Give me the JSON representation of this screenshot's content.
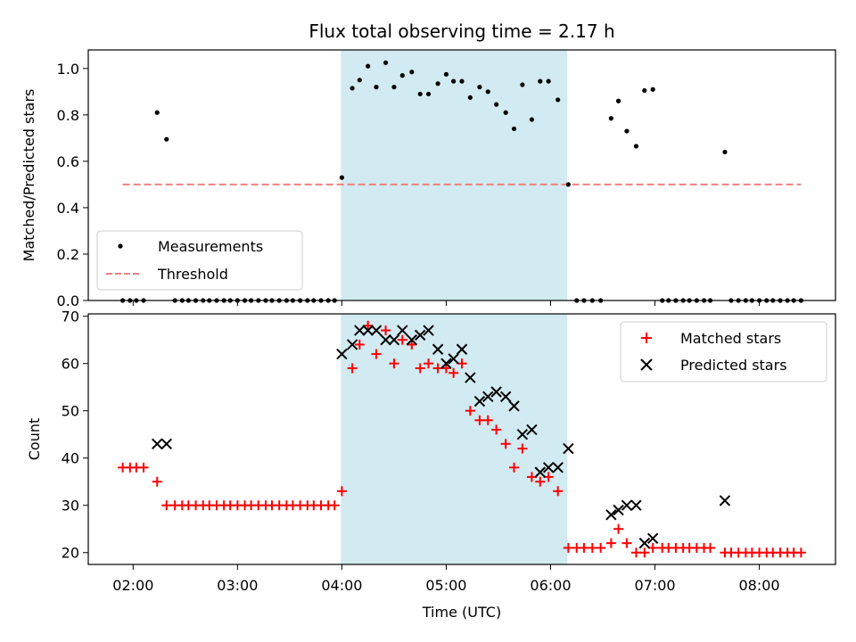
{
  "chart_data": {
    "title": "Flux total observing time = 2.17 h",
    "shared_x": {
      "label": "Time (UTC)",
      "tick_labels": [
        "02:00",
        "03:00",
        "04:00",
        "05:00",
        "06:00",
        "07:00",
        "08:00"
      ],
      "tick_hours": [
        2,
        3,
        4,
        5,
        6,
        7,
        8
      ],
      "range_hours": [
        1.57,
        8.73
      ]
    },
    "highlight_span_hours": [
      3.99,
      6.16
    ],
    "highlight_color": "#add8e6",
    "top": {
      "type": "scatter",
      "ylabel": "Matched/Predicted stars",
      "ylim": [
        0,
        1.08
      ],
      "y_ticks": [
        0.0,
        0.2,
        0.4,
        0.6,
        0.8,
        1.0
      ],
      "y_tick_labels": [
        "0.0",
        "0.2",
        "0.4",
        "0.6",
        "0.8",
        "1.0"
      ],
      "legend_position": "lower-left",
      "series": [
        {
          "name": "Measurements",
          "color": "#000000",
          "marker": "dot",
          "points": [
            [
              1.9,
              0
            ],
            [
              1.97,
              0
            ],
            [
              2.03,
              0
            ],
            [
              2.1,
              0
            ],
            [
              2.23,
              0.81
            ],
            [
              2.32,
              0.695
            ],
            [
              2.4,
              0
            ],
            [
              2.47,
              0
            ],
            [
              2.53,
              0
            ],
            [
              2.6,
              0
            ],
            [
              2.67,
              0
            ],
            [
              2.73,
              0
            ],
            [
              2.8,
              0
            ],
            [
              2.87,
              0
            ],
            [
              2.93,
              0
            ],
            [
              3.0,
              0
            ],
            [
              3.07,
              0
            ],
            [
              3.13,
              0
            ],
            [
              3.2,
              0
            ],
            [
              3.27,
              0
            ],
            [
              3.33,
              0
            ],
            [
              3.4,
              0
            ],
            [
              3.47,
              0
            ],
            [
              3.53,
              0
            ],
            [
              3.6,
              0
            ],
            [
              3.67,
              0
            ],
            [
              3.73,
              0
            ],
            [
              3.8,
              0
            ],
            [
              3.87,
              0
            ],
            [
              3.93,
              0
            ],
            [
              4.0,
              0.53
            ],
            [
              4.1,
              0.915
            ],
            [
              4.17,
              0.95
            ],
            [
              4.25,
              1.01
            ],
            [
              4.33,
              0.92
            ],
            [
              4.42,
              1.025
            ],
            [
              4.5,
              0.92
            ],
            [
              4.58,
              0.97
            ],
            [
              4.67,
              0.985
            ],
            [
              4.75,
              0.89
            ],
            [
              4.83,
              0.89
            ],
            [
              4.92,
              0.935
            ],
            [
              5.0,
              0.975
            ],
            [
              5.07,
              0.945
            ],
            [
              5.15,
              0.945
            ],
            [
              5.23,
              0.875
            ],
            [
              5.32,
              0.92
            ],
            [
              5.4,
              0.9
            ],
            [
              5.48,
              0.845
            ],
            [
              5.57,
              0.81
            ],
            [
              5.65,
              0.74
            ],
            [
              5.73,
              0.93
            ],
            [
              5.82,
              0.78
            ],
            [
              5.9,
              0.945
            ],
            [
              5.98,
              0.945
            ],
            [
              6.07,
              0.865
            ],
            [
              6.17,
              0.5
            ],
            [
              6.25,
              0
            ],
            [
              6.32,
              0
            ],
            [
              6.4,
              0
            ],
            [
              6.48,
              0
            ],
            [
              6.58,
              0.785
            ],
            [
              6.65,
              0.86
            ],
            [
              6.73,
              0.73
            ],
            [
              6.82,
              0.665
            ],
            [
              6.9,
              0.905
            ],
            [
              6.98,
              0.91
            ],
            [
              7.07,
              0
            ],
            [
              7.13,
              0
            ],
            [
              7.2,
              0
            ],
            [
              7.27,
              0
            ],
            [
              7.33,
              0
            ],
            [
              7.4,
              0
            ],
            [
              7.47,
              0
            ],
            [
              7.53,
              0
            ],
            [
              7.67,
              0.64
            ],
            [
              7.73,
              0
            ],
            [
              7.8,
              0
            ],
            [
              7.87,
              0
            ],
            [
              7.93,
              0
            ],
            [
              8.0,
              0
            ],
            [
              8.07,
              0
            ],
            [
              8.13,
              0
            ],
            [
              8.2,
              0
            ],
            [
              8.27,
              0
            ],
            [
              8.33,
              0
            ],
            [
              8.4,
              0
            ]
          ]
        },
        {
          "name": "Threshold",
          "color": "#f08080",
          "style": "dashed",
          "x_range": [
            1.9,
            8.4
          ],
          "value": 0.5
        }
      ]
    },
    "bottom": {
      "type": "scatter",
      "ylabel": "Count",
      "ylim": [
        17.5,
        70.5
      ],
      "y_ticks": [
        20,
        30,
        40,
        50,
        60,
        70
      ],
      "y_tick_labels": [
        "20",
        "30",
        "40",
        "50",
        "60",
        "70"
      ],
      "legend_position": "upper-right",
      "series": [
        {
          "name": "Matched stars",
          "color": "#ff0000",
          "marker": "plus",
          "points": [
            [
              1.9,
              38
            ],
            [
              1.97,
              38
            ],
            [
              2.03,
              38
            ],
            [
              2.1,
              38
            ],
            [
              2.23,
              35
            ],
            [
              2.32,
              30
            ],
            [
              2.4,
              30
            ],
            [
              2.47,
              30
            ],
            [
              2.53,
              30
            ],
            [
              2.6,
              30
            ],
            [
              2.67,
              30
            ],
            [
              2.73,
              30
            ],
            [
              2.8,
              30
            ],
            [
              2.87,
              30
            ],
            [
              2.93,
              30
            ],
            [
              3.0,
              30
            ],
            [
              3.07,
              30
            ],
            [
              3.13,
              30
            ],
            [
              3.2,
              30
            ],
            [
              3.27,
              30
            ],
            [
              3.33,
              30
            ],
            [
              3.4,
              30
            ],
            [
              3.47,
              30
            ],
            [
              3.53,
              30
            ],
            [
              3.6,
              30
            ],
            [
              3.67,
              30
            ],
            [
              3.73,
              30
            ],
            [
              3.8,
              30
            ],
            [
              3.87,
              30
            ],
            [
              3.93,
              30
            ],
            [
              4.0,
              33
            ],
            [
              4.1,
              59
            ],
            [
              4.17,
              64
            ],
            [
              4.25,
              68
            ],
            [
              4.33,
              62
            ],
            [
              4.42,
              67
            ],
            [
              4.5,
              60
            ],
            [
              4.58,
              65
            ],
            [
              4.67,
              64
            ],
            [
              4.75,
              59
            ],
            [
              4.83,
              60
            ],
            [
              4.92,
              59
            ],
            [
              5.0,
              59
            ],
            [
              5.07,
              58
            ],
            [
              5.15,
              60
            ],
            [
              5.23,
              50
            ],
            [
              5.32,
              48
            ],
            [
              5.4,
              48
            ],
            [
              5.48,
              46
            ],
            [
              5.57,
              43
            ],
            [
              5.65,
              38
            ],
            [
              5.73,
              42
            ],
            [
              5.82,
              36
            ],
            [
              5.9,
              35
            ],
            [
              5.98,
              36
            ],
            [
              6.07,
              33
            ],
            [
              6.17,
              21
            ],
            [
              6.25,
              21
            ],
            [
              6.32,
              21
            ],
            [
              6.4,
              21
            ],
            [
              6.48,
              21
            ],
            [
              6.58,
              22
            ],
            [
              6.65,
              25
            ],
            [
              6.73,
              22
            ],
            [
              6.82,
              20
            ],
            [
              6.9,
              20
            ],
            [
              6.98,
              21
            ],
            [
              7.07,
              21
            ],
            [
              7.13,
              21
            ],
            [
              7.2,
              21
            ],
            [
              7.27,
              21
            ],
            [
              7.33,
              21
            ],
            [
              7.4,
              21
            ],
            [
              7.47,
              21
            ],
            [
              7.53,
              21
            ],
            [
              7.67,
              20
            ],
            [
              7.73,
              20
            ],
            [
              7.8,
              20
            ],
            [
              7.87,
              20
            ],
            [
              7.93,
              20
            ],
            [
              8.0,
              20
            ],
            [
              8.07,
              20
            ],
            [
              8.13,
              20
            ],
            [
              8.2,
              20
            ],
            [
              8.27,
              20
            ],
            [
              8.33,
              20
            ],
            [
              8.4,
              20
            ]
          ]
        },
        {
          "name": "Predicted stars",
          "color": "#000000",
          "marker": "x",
          "points": [
            [
              2.23,
              43
            ],
            [
              2.32,
              43
            ],
            [
              4.0,
              62
            ],
            [
              4.1,
              64
            ],
            [
              4.17,
              67
            ],
            [
              4.25,
              67
            ],
            [
              4.33,
              67
            ],
            [
              4.42,
              65
            ],
            [
              4.5,
              65
            ],
            [
              4.58,
              67
            ],
            [
              4.67,
              65
            ],
            [
              4.75,
              66
            ],
            [
              4.83,
              67
            ],
            [
              4.92,
              63
            ],
            [
              5.0,
              60
            ],
            [
              5.07,
              61
            ],
            [
              5.15,
              63
            ],
            [
              5.23,
              57
            ],
            [
              5.32,
              52
            ],
            [
              5.4,
              53
            ],
            [
              5.48,
              54
            ],
            [
              5.57,
              53
            ],
            [
              5.65,
              51
            ],
            [
              5.73,
              45
            ],
            [
              5.82,
              46
            ],
            [
              5.9,
              37
            ],
            [
              5.98,
              38
            ],
            [
              6.07,
              38
            ],
            [
              6.17,
              42
            ],
            [
              6.58,
              28
            ],
            [
              6.65,
              29
            ],
            [
              6.73,
              30
            ],
            [
              6.82,
              30
            ],
            [
              6.9,
              22
            ],
            [
              6.98,
              23
            ],
            [
              7.67,
              31
            ]
          ]
        }
      ]
    }
  }
}
